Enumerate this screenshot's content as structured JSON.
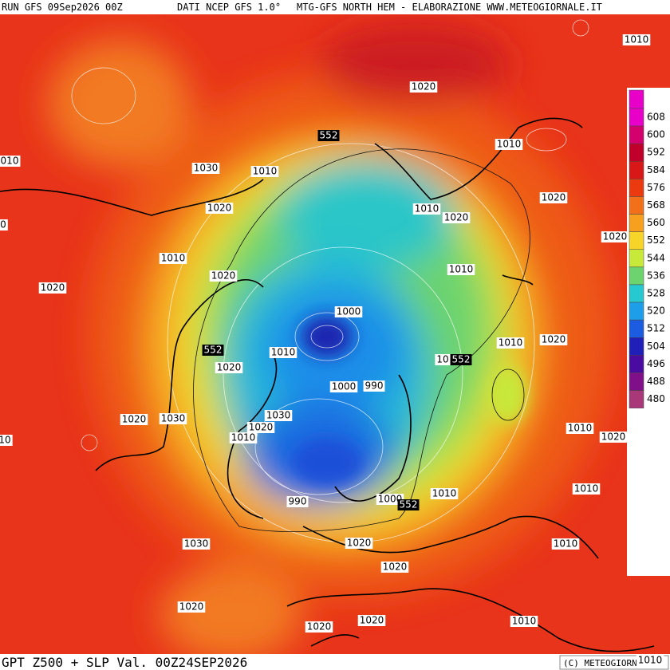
{
  "header": {
    "run": "RUN GFS 09Sep2026 00Z",
    "source": "DATI NCEP GFS 1.0°",
    "credit": "MTG-GFS NORTH HEM - ELABORAZIONE WWW.METEOGIORNALE.IT"
  },
  "footer": {
    "field": "GPT Z500 + SLP Val. 00Z24SEP2026",
    "copyright": "(C) METEOGIORNALE"
  },
  "legend": {
    "levels": [
      608,
      600,
      592,
      584,
      576,
      568,
      560,
      552,
      544,
      536,
      528,
      520,
      512,
      504,
      496,
      488,
      480
    ],
    "colors": [
      "#e800c8",
      "#d4006e",
      "#c0002a",
      "#d81818",
      "#ec3a10",
      "#f2701a",
      "#f7a020",
      "#f6d42a",
      "#c8e83a",
      "#6cd36e",
      "#28c8d0",
      "#1e9ee8",
      "#1c5ce0",
      "#2020b8",
      "#4a0ca0",
      "#80108a",
      "#a83878"
    ]
  },
  "contour_labels": [
    "1010",
    "1020",
    "552",
    "1010",
    "010",
    "1030",
    "1010",
    "1020",
    "1010",
    "1020",
    "1020",
    "0",
    "1020",
    "1010",
    "1010",
    "1020",
    "1020",
    "1000",
    "1010",
    "1020",
    "552",
    "1010",
    "10",
    "552",
    "1020",
    "1000",
    "990",
    "1020",
    "1030",
    "1030",
    "1020",
    "1010",
    "10",
    "1010",
    "1020",
    "1010",
    "990",
    "1000",
    "552",
    "1010",
    "1030",
    "1020",
    "1010",
    "1020",
    "1020",
    "1020",
    "1020",
    "1010",
    "1010"
  ]
}
